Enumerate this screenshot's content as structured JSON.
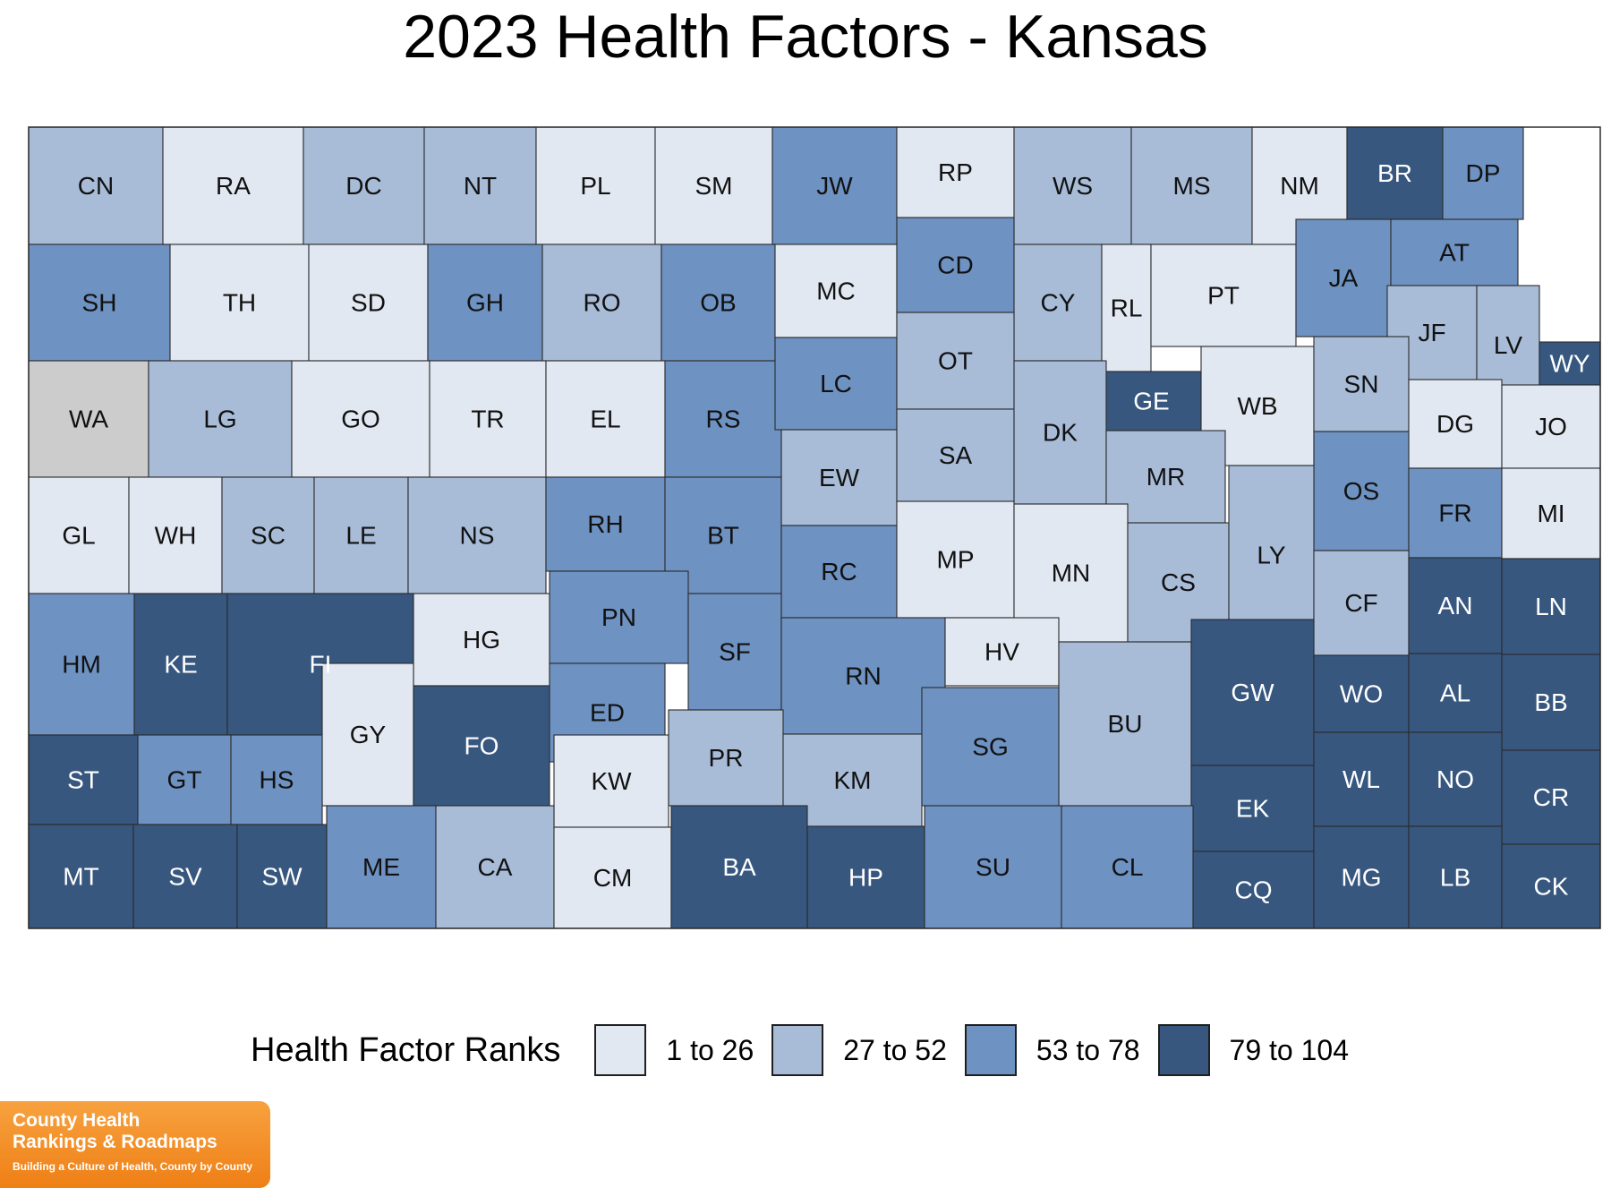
{
  "title": "2023 Health Factors - Kansas",
  "legend": {
    "title": "Health Factor Ranks",
    "items": [
      {
        "label": "1 to 26",
        "color": "#e2e8f2"
      },
      {
        "label": "27 to 52",
        "color": "#a8bcd8"
      },
      {
        "label": "53 to 78",
        "color": "#6e92c1"
      },
      {
        "label": "79 to 104",
        "color": "#37577f"
      }
    ],
    "no_data_color": "#cccccc"
  },
  "logo": {
    "line1": "County Health",
    "line2": "Rankings & Roadmaps",
    "tagline": "Building a Culture of Health, County by County"
  },
  "counties": [
    {
      "code": "CN",
      "tier": 2
    },
    {
      "code": "RA",
      "tier": 1
    },
    {
      "code": "DC",
      "tier": 2
    },
    {
      "code": "NT",
      "tier": 2
    },
    {
      "code": "PL",
      "tier": 1
    },
    {
      "code": "SM",
      "tier": 1
    },
    {
      "code": "JW",
      "tier": 3
    },
    {
      "code": "RP",
      "tier": 1
    },
    {
      "code": "WS",
      "tier": 2
    },
    {
      "code": "MS",
      "tier": 2
    },
    {
      "code": "NM",
      "tier": 1
    },
    {
      "code": "BR",
      "tier": 4
    },
    {
      "code": "DP",
      "tier": 3
    },
    {
      "code": "SH",
      "tier": 3
    },
    {
      "code": "TH",
      "tier": 1
    },
    {
      "code": "SD",
      "tier": 1
    },
    {
      "code": "GH",
      "tier": 3
    },
    {
      "code": "RO",
      "tier": 2
    },
    {
      "code": "OB",
      "tier": 3
    },
    {
      "code": "MC",
      "tier": 1
    },
    {
      "code": "CD",
      "tier": 3
    },
    {
      "code": "CY",
      "tier": 2
    },
    {
      "code": "RL",
      "tier": 1
    },
    {
      "code": "PT",
      "tier": 1
    },
    {
      "code": "JA",
      "tier": 3
    },
    {
      "code": "AT",
      "tier": 3
    },
    {
      "code": "JF",
      "tier": 2
    },
    {
      "code": "LV",
      "tier": 2
    },
    {
      "code": "WY",
      "tier": 4
    },
    {
      "code": "WA",
      "tier": 0
    },
    {
      "code": "LG",
      "tier": 2
    },
    {
      "code": "GO",
      "tier": 1
    },
    {
      "code": "TR",
      "tier": 1
    },
    {
      "code": "EL",
      "tier": 1
    },
    {
      "code": "RS",
      "tier": 3
    },
    {
      "code": "LC",
      "tier": 3
    },
    {
      "code": "OT",
      "tier": 2
    },
    {
      "code": "GE",
      "tier": 4
    },
    {
      "code": "WB",
      "tier": 1
    },
    {
      "code": "SN",
      "tier": 2
    },
    {
      "code": "DG",
      "tier": 1
    },
    {
      "code": "JO",
      "tier": 1
    },
    {
      "code": "EW",
      "tier": 2
    },
    {
      "code": "SA",
      "tier": 2
    },
    {
      "code": "DK",
      "tier": 2
    },
    {
      "code": "MR",
      "tier": 2
    },
    {
      "code": "OS",
      "tier": 3
    },
    {
      "code": "FR",
      "tier": 3
    },
    {
      "code": "MI",
      "tier": 1
    },
    {
      "code": "GL",
      "tier": 1
    },
    {
      "code": "WH",
      "tier": 1
    },
    {
      "code": "SC",
      "tier": 2
    },
    {
      "code": "LE",
      "tier": 2
    },
    {
      "code": "NS",
      "tier": 2
    },
    {
      "code": "RH",
      "tier": 3
    },
    {
      "code": "BT",
      "tier": 3
    },
    {
      "code": "RC",
      "tier": 3
    },
    {
      "code": "MP",
      "tier": 1
    },
    {
      "code": "MN",
      "tier": 1
    },
    {
      "code": "CS",
      "tier": 2
    },
    {
      "code": "LY",
      "tier": 2
    },
    {
      "code": "CF",
      "tier": 2
    },
    {
      "code": "AN",
      "tier": 4
    },
    {
      "code": "LN",
      "tier": 4
    },
    {
      "code": "HM",
      "tier": 3
    },
    {
      "code": "KE",
      "tier": 4
    },
    {
      "code": "FI",
      "tier": 4
    },
    {
      "code": "HG",
      "tier": 1
    },
    {
      "code": "PN",
      "tier": 3
    },
    {
      "code": "SF",
      "tier": 3
    },
    {
      "code": "RN",
      "tier": 3
    },
    {
      "code": "HV",
      "tier": 1
    },
    {
      "code": "BU",
      "tier": 2
    },
    {
      "code": "GW",
      "tier": 4
    },
    {
      "code": "WO",
      "tier": 4
    },
    {
      "code": "AL",
      "tier": 4
    },
    {
      "code": "BB",
      "tier": 4
    },
    {
      "code": "GY",
      "tier": 1
    },
    {
      "code": "FO",
      "tier": 4
    },
    {
      "code": "ED",
      "tier": 3
    },
    {
      "code": "KW",
      "tier": 1
    },
    {
      "code": "PR",
      "tier": 2
    },
    {
      "code": "KM",
      "tier": 2
    },
    {
      "code": "SG",
      "tier": 3
    },
    {
      "code": "ST",
      "tier": 4
    },
    {
      "code": "GT",
      "tier": 3
    },
    {
      "code": "HS",
      "tier": 3
    },
    {
      "code": "EK",
      "tier": 4
    },
    {
      "code": "WL",
      "tier": 4
    },
    {
      "code": "NO",
      "tier": 4
    },
    {
      "code": "CR",
      "tier": 4
    },
    {
      "code": "MT",
      "tier": 4
    },
    {
      "code": "SV",
      "tier": 4
    },
    {
      "code": "SW",
      "tier": 4
    },
    {
      "code": "ME",
      "tier": 3
    },
    {
      "code": "CA",
      "tier": 2
    },
    {
      "code": "CM",
      "tier": 1
    },
    {
      "code": "BA",
      "tier": 4
    },
    {
      "code": "HP",
      "tier": 4
    },
    {
      "code": "SU",
      "tier": 3
    },
    {
      "code": "CL",
      "tier": 3
    },
    {
      "code": "CQ",
      "tier": 4
    },
    {
      "code": "MG",
      "tier": 4
    },
    {
      "code": "LB",
      "tier": 4
    },
    {
      "code": "CK",
      "tier": 4
    }
  ]
}
